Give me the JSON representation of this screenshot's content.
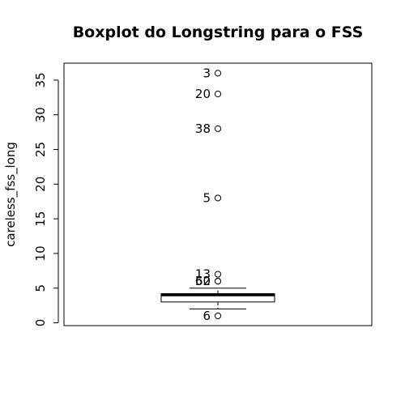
{
  "chart_data": {
    "type": "boxplot",
    "title": "Boxplot do Longstring para o FSS",
    "ylabel": "careless_fss_long",
    "xlabel": "",
    "ylim": [
      0,
      35
    ],
    "yticks": [
      0,
      5,
      10,
      15,
      20,
      25,
      30,
      35
    ],
    "grid": false,
    "box": {
      "min": 2,
      "q1": 3,
      "median": 4,
      "q3": 4.2,
      "max": 5
    },
    "outliers": [
      {
        "label": "6",
        "value": 1
      },
      {
        "label": "62",
        "value": 6
      },
      {
        "label": "50",
        "value": 6
      },
      {
        "label": "13",
        "value": 7
      },
      {
        "label": "5",
        "value": 18
      },
      {
        "label": "38",
        "value": 28
      },
      {
        "label": "20",
        "value": 33
      },
      {
        "label": "3",
        "value": 36
      }
    ]
  }
}
